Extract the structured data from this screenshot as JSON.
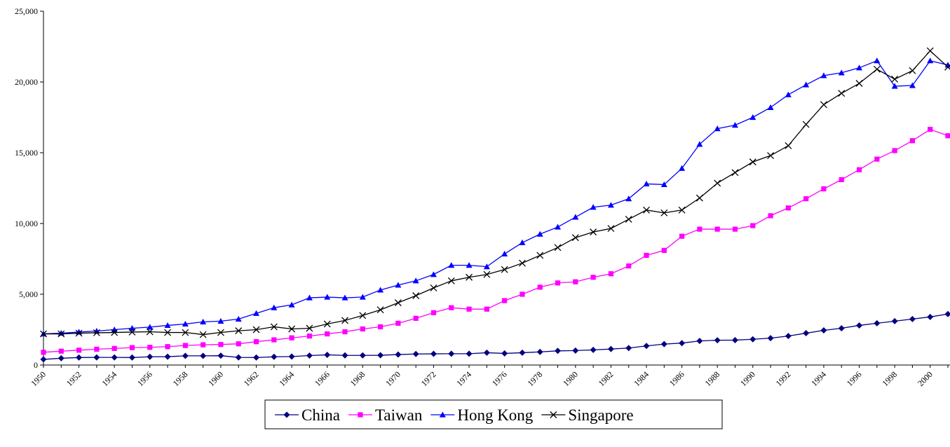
{
  "chart_data": {
    "type": "line",
    "categories": [
      "1950",
      null,
      "1952",
      null,
      "1954",
      null,
      "1956",
      null,
      "1958",
      null,
      "1960",
      null,
      "1962",
      null,
      "1964",
      null,
      "1966",
      null,
      "1968",
      null,
      "1970",
      null,
      "1972",
      null,
      "1974",
      null,
      "1976",
      null,
      "1978",
      null,
      "1980",
      null,
      "1982",
      null,
      "1984",
      null,
      "1986",
      null,
      "1988",
      null,
      "1990",
      null,
      "1992",
      null,
      "1994",
      null,
      "1996",
      null,
      "1998",
      null,
      "2000",
      null
    ],
    "series": [
      {
        "name": "China",
        "color": "#000080",
        "marker": "diamond",
        "values": [
          400,
          480,
          530,
          540,
          540,
          530,
          580,
          590,
          650,
          650,
          660,
          540,
          530,
          580,
          600,
          670,
          720,
          680,
          680,
          690,
          740,
          780,
          790,
          800,
          800,
          870,
          820,
          870,
          930,
          1000,
          1020,
          1070,
          1130,
          1200,
          1350,
          1480,
          1550,
          1700,
          1750,
          1760,
          1820,
          1900,
          2050,
          2250,
          2450,
          2600,
          2800,
          2950,
          3100,
          3250,
          3400,
          3600
        ]
      },
      {
        "name": "Taiwan",
        "color": "#ff00ff",
        "marker": "square",
        "values": [
          900,
          980,
          1050,
          1120,
          1170,
          1230,
          1250,
          1300,
          1380,
          1430,
          1450,
          1500,
          1650,
          1780,
          1920,
          2050,
          2200,
          2350,
          2550,
          2700,
          2950,
          3300,
          3700,
          4050,
          3950,
          3950,
          4550,
          5000,
          5500,
          5800,
          5880,
          6200,
          6450,
          7000,
          7750,
          8100,
          9100,
          9600,
          9600,
          9600,
          9850,
          10550,
          11100,
          11750,
          12450,
          13100,
          13800,
          14550,
          15150,
          15850,
          16650,
          16200
        ]
      },
      {
        "name": "Hong Kong",
        "color": "#0000ff",
        "marker": "triangle",
        "values": [
          2200,
          2250,
          2330,
          2400,
          2500,
          2600,
          2680,
          2800,
          2900,
          3050,
          3100,
          3250,
          3650,
          4050,
          4250,
          4750,
          4800,
          4750,
          4800,
          5300,
          5650,
          5950,
          6400,
          7050,
          7050,
          6950,
          7850,
          8650,
          9250,
          9750,
          10450,
          11150,
          11300,
          11750,
          12800,
          12750,
          13900,
          15600,
          16700,
          16950,
          17500,
          18200,
          19100,
          19800,
          20450,
          20650,
          21000,
          21500,
          19700,
          19750,
          21500,
          21200
        ]
      },
      {
        "name": "Singapore",
        "color": "#000000",
        "marker": "x",
        "values": [
          2200,
          2200,
          2250,
          2280,
          2300,
          2330,
          2350,
          2300,
          2300,
          2150,
          2300,
          2420,
          2500,
          2700,
          2550,
          2600,
          2900,
          3150,
          3500,
          3900,
          4400,
          4900,
          5450,
          5950,
          6200,
          6400,
          6750,
          7200,
          7750,
          8300,
          9000,
          9400,
          9650,
          10300,
          10950,
          10750,
          10950,
          11800,
          12850,
          13600,
          14350,
          14800,
          15500,
          17000,
          18400,
          19200,
          19900,
          20900,
          20200,
          20800,
          22200,
          21050
        ]
      }
    ],
    "ylim": [
      0,
      25000
    ],
    "yticks": [
      0,
      {
        "value": 5000,
        "label": "5,000"
      },
      {
        "value": 10000,
        "label": "10,000"
      },
      {
        "value": 15000,
        "label": "15,000"
      },
      {
        "value": 20000,
        "label": "20,000"
      },
      {
        "value": 25000,
        "label": "25,000"
      }
    ],
    "legend": "bottom"
  }
}
